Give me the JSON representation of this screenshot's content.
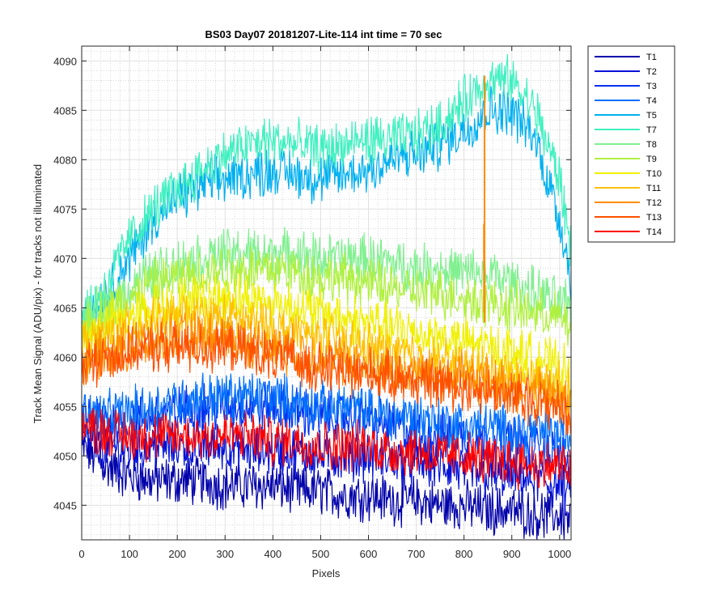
{
  "chart_data": {
    "type": "line",
    "title": "BS03 Day07 20181207-Lite-114 int time = 70 sec",
    "xlabel": "Pixels",
    "ylabel": "Track Mean Signal (ADU/pix) - for tracks not illuminated",
    "xlim": [
      0,
      1024
    ],
    "ylim": [
      4041.5,
      4091.5
    ],
    "xticks": [
      0,
      100,
      200,
      300,
      400,
      500,
      600,
      700,
      800,
      900,
      1000
    ],
    "yticks": [
      4045,
      4050,
      4055,
      4060,
      4065,
      4070,
      4075,
      4080,
      4085,
      4090
    ],
    "grid": true,
    "minor_grid": true,
    "legend_position": "outside top-right",
    "x": [
      0,
      50,
      100,
      150,
      200,
      250,
      300,
      350,
      400,
      450,
      500,
      550,
      600,
      650,
      700,
      750,
      800,
      850,
      900,
      950,
      1000,
      1024
    ],
    "series": [
      {
        "name": "T1",
        "color": "#0000AA",
        "values": [
          4051,
          4049,
          4048,
          4047.5,
          4047.5,
          4047.5,
          4047,
          4047,
          4047,
          4046.5,
          4046.5,
          4046,
          4046,
          4045.5,
          4045.5,
          4045,
          4045,
          4044.5,
          4044.5,
          4044,
          4044,
          4043.5
        ]
      },
      {
        "name": "T2",
        "color": "#0010D8",
        "values": [
          4052,
          4051,
          4050.5,
          4051,
          4051,
          4051,
          4051,
          4050.5,
          4050.5,
          4050.5,
          4050,
          4050,
          4050,
          4049.5,
          4049.5,
          4049,
          4048.5,
          4048,
          4048,
          4047.5,
          4047,
          4046
        ]
      },
      {
        "name": "T3",
        "color": "#0030F0",
        "values": [
          4054,
          4053.5,
          4053.5,
          4054,
          4054.5,
          4055,
          4055,
          4055,
          4055,
          4054.5,
          4054,
          4054,
          4053.5,
          4053,
          4052.5,
          4052,
          4052,
          4051.5,
          4051.5,
          4051,
          4050,
          4049
        ]
      },
      {
        "name": "T4",
        "color": "#0070FF",
        "values": [
          4054.5,
          4054,
          4054.5,
          4055,
          4055.5,
          4056,
          4056,
          4056,
          4056,
          4055.5,
          4055,
          4055,
          4054.5,
          4054,
          4054,
          4053.5,
          4053,
          4053,
          4052.5,
          4052.5,
          4052,
          4051.5
        ]
      },
      {
        "name": "T5",
        "color": "#00B0F0",
        "values": [
          4064,
          4066,
          4070,
          4074,
          4076,
          4077.5,
          4078,
          4078.5,
          4079,
          4078.5,
          4078,
          4078.5,
          4079,
          4080,
          4080.5,
          4081.5,
          4083,
          4085,
          4085,
          4082,
          4074,
          4068
        ]
      },
      {
        "name": "T7",
        "color": "#40F0C0",
        "values": [
          4064,
          4067,
          4072,
          4075,
          4077,
          4079,
          4080.5,
          4081.5,
          4082,
          4081.5,
          4081,
          4081.5,
          4082,
          4082,
          4082.5,
          4083.5,
          4086,
          4088,
          4088,
          4085,
          4078,
          4071
        ]
      },
      {
        "name": "T8",
        "color": "#80F090",
        "values": [
          4063.5,
          4065,
          4067,
          4068.5,
          4069.5,
          4070,
          4070.5,
          4070.5,
          4070.5,
          4070.5,
          4070,
          4070,
          4070,
          4069.5,
          4069,
          4069,
          4068.5,
          4068.5,
          4067.5,
          4066.5,
          4065.5,
          4065
        ]
      },
      {
        "name": "T9",
        "color": "#B0F040",
        "values": [
          4063,
          4064.5,
          4066,
          4067.5,
          4068,
          4068.5,
          4069,
          4069,
          4069,
          4068.5,
          4068,
          4068,
          4067.5,
          4067,
          4066.5,
          4066.5,
          4066,
          4065.5,
          4065,
          4064.5,
          4064,
          4063
        ]
      },
      {
        "name": "T10",
        "color": "#F0F000",
        "values": [
          4062,
          4063,
          4064,
          4065,
          4065.5,
          4066,
          4066,
          4066,
          4065.5,
          4065,
          4064.5,
          4064,
          4063.5,
          4063,
          4062.5,
          4062,
          4061.5,
          4061,
          4060.5,
          4060,
          4059,
          4058
        ]
      },
      {
        "name": "T11",
        "color": "#FFC000",
        "values": [
          4061,
          4062,
          4063,
          4063.5,
          4064,
          4064,
          4064,
          4063.5,
          4063,
          4062.5,
          4062,
          4061.5,
          4061,
          4060.5,
          4060,
          4059.5,
          4059,
          4058.5,
          4058,
          4057.5,
          4057,
          4056
        ]
      },
      {
        "name": "T12",
        "color": "#FF8C00",
        "values": [
          4059.5,
          4060.5,
          4061,
          4061.5,
          4062,
          4062,
          4062,
          4061.5,
          4061,
          4060.5,
          4060,
          4059.5,
          4059,
          4058.5,
          4058.5,
          4058,
          4058,
          4057.5,
          4057,
          4056.5,
          4056,
          4055
        ]
      },
      {
        "name": "T13",
        "color": "#FF5000",
        "values": [
          4059,
          4060,
          4060.5,
          4061,
          4061,
          4061,
          4061,
          4060.5,
          4060,
          4059.5,
          4059,
          4058.5,
          4058.5,
          4058,
          4057.5,
          4057.5,
          4057,
          4056.5,
          4056,
          4055.5,
          4055,
          4054
        ]
      },
      {
        "name": "T14",
        "color": "#FF0000",
        "values": [
          4053,
          4052.5,
          4052,
          4052,
          4052,
          4052,
          4052,
          4052,
          4051.5,
          4051.5,
          4051,
          4051,
          4051,
          4050.5,
          4050.5,
          4050,
          4050,
          4049.5,
          4049.5,
          4049,
          4049,
          4048.5
        ]
      }
    ],
    "annotations": [
      {
        "series": "T12",
        "x": 843,
        "y_top": 4088.5,
        "y_bottom": 4063.5,
        "note": "spike"
      }
    ]
  }
}
